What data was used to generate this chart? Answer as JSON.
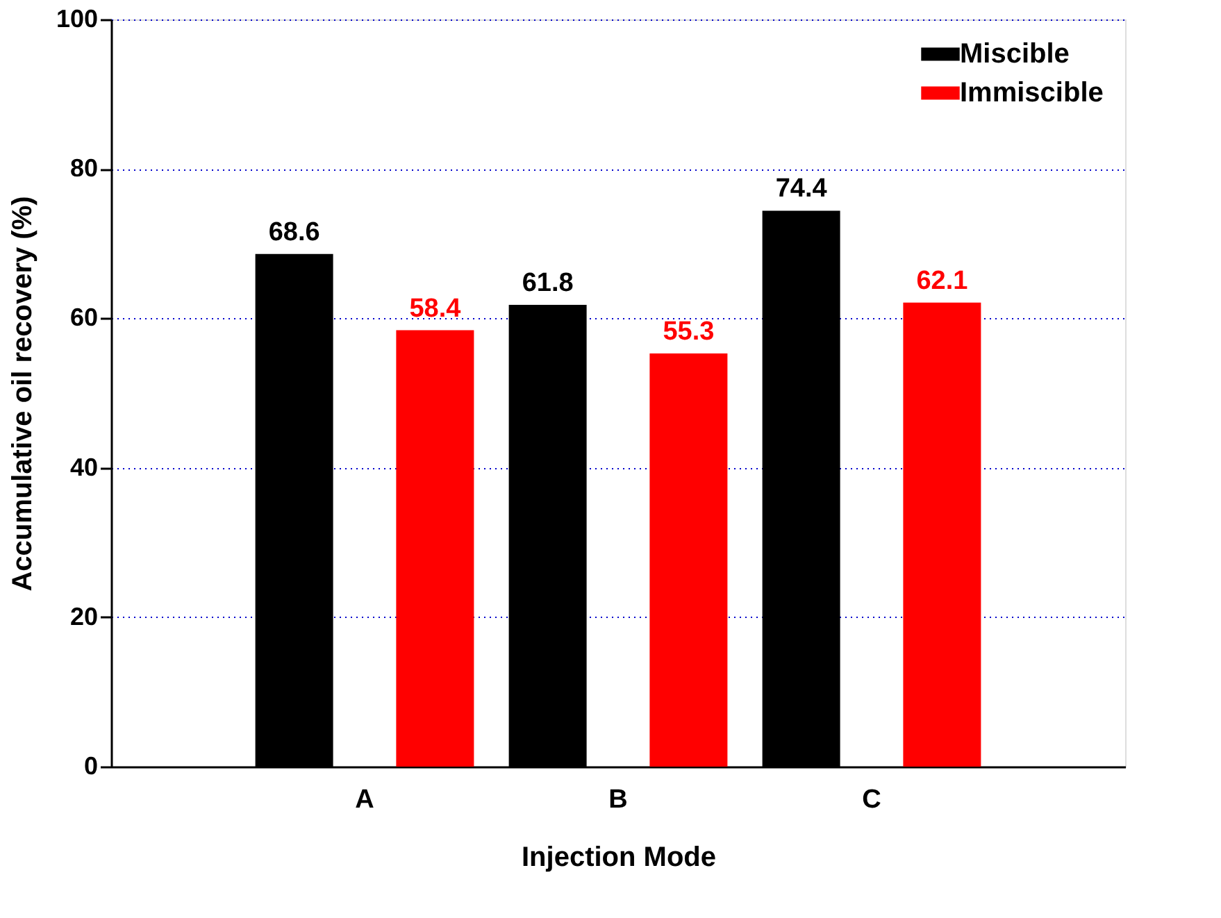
{
  "chart_data": {
    "type": "bar",
    "xlabel": "Injection Mode",
    "ylabel": "Accumulative oil recovery (%)",
    "categories": [
      "A",
      "B",
      "C"
    ],
    "series": [
      {
        "name": "Miscible",
        "color": "#000000",
        "values": [
          68.6,
          61.8,
          74.4
        ]
      },
      {
        "name": "Immiscible",
        "color": "#ff0000",
        "values": [
          58.4,
          55.3,
          62.1
        ]
      }
    ],
    "ylim": [
      0,
      100
    ],
    "yticks": [
      0,
      20,
      40,
      60,
      80,
      100
    ],
    "grid": "y",
    "legend": "top right",
    "data_labels": true
  }
}
